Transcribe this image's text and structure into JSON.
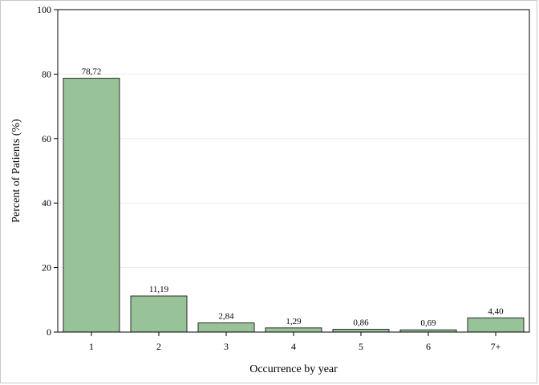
{
  "chart_data": {
    "type": "bar",
    "title": "",
    "xlabel": "Occurrence by year",
    "ylabel": "Percent of Patients (%)",
    "categories": [
      "1",
      "2",
      "3",
      "4",
      "5",
      "6",
      "7+"
    ],
    "values": [
      78.72,
      11.19,
      2.84,
      1.29,
      0.86,
      0.69,
      4.4
    ],
    "value_labels": [
      "78,72",
      "11,19",
      "2,84",
      "1,29",
      "0,86",
      "0,69",
      "4,40"
    ],
    "ylim": [
      0,
      100
    ],
    "yticks": [
      0,
      20,
      40,
      60,
      80,
      100
    ],
    "grid": true,
    "legend": "none",
    "colors": {
      "bar_fill": "#98c398",
      "bar_stroke": "#2b2b2b",
      "grid": "#ececec",
      "axis": "#000000"
    }
  }
}
